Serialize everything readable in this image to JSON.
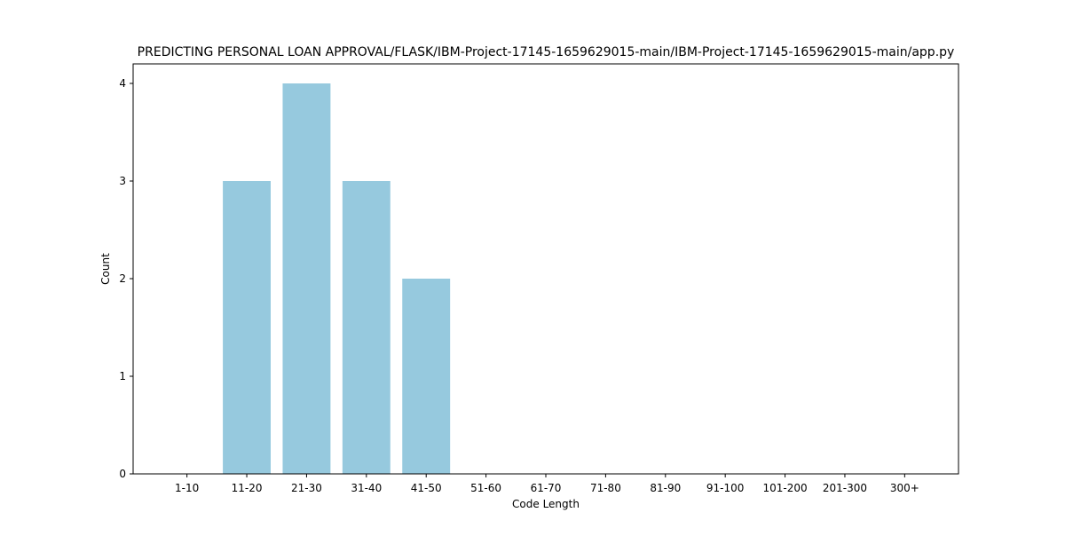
{
  "chart_data": {
    "type": "bar",
    "title": "PREDICTING PERSONAL LOAN APPROVAL/FLASK/IBM-Project-17145-1659629015-main/IBM-Project-17145-1659629015-main/app.py",
    "xlabel": "Code Length",
    "ylabel": "Count",
    "categories": [
      "1-10",
      "11-20",
      "21-30",
      "31-40",
      "41-50",
      "51-60",
      "61-70",
      "71-80",
      "81-90",
      "91-100",
      "101-200",
      "201-300",
      "300+"
    ],
    "values": [
      0,
      3,
      4,
      3,
      2,
      0,
      0,
      0,
      0,
      0,
      0,
      0,
      0
    ],
    "ylim": [
      0,
      4.2
    ],
    "yticks": [
      0,
      1,
      2,
      3,
      4
    ],
    "bar_color": "#96c9de",
    "grid": false,
    "legend": false
  }
}
